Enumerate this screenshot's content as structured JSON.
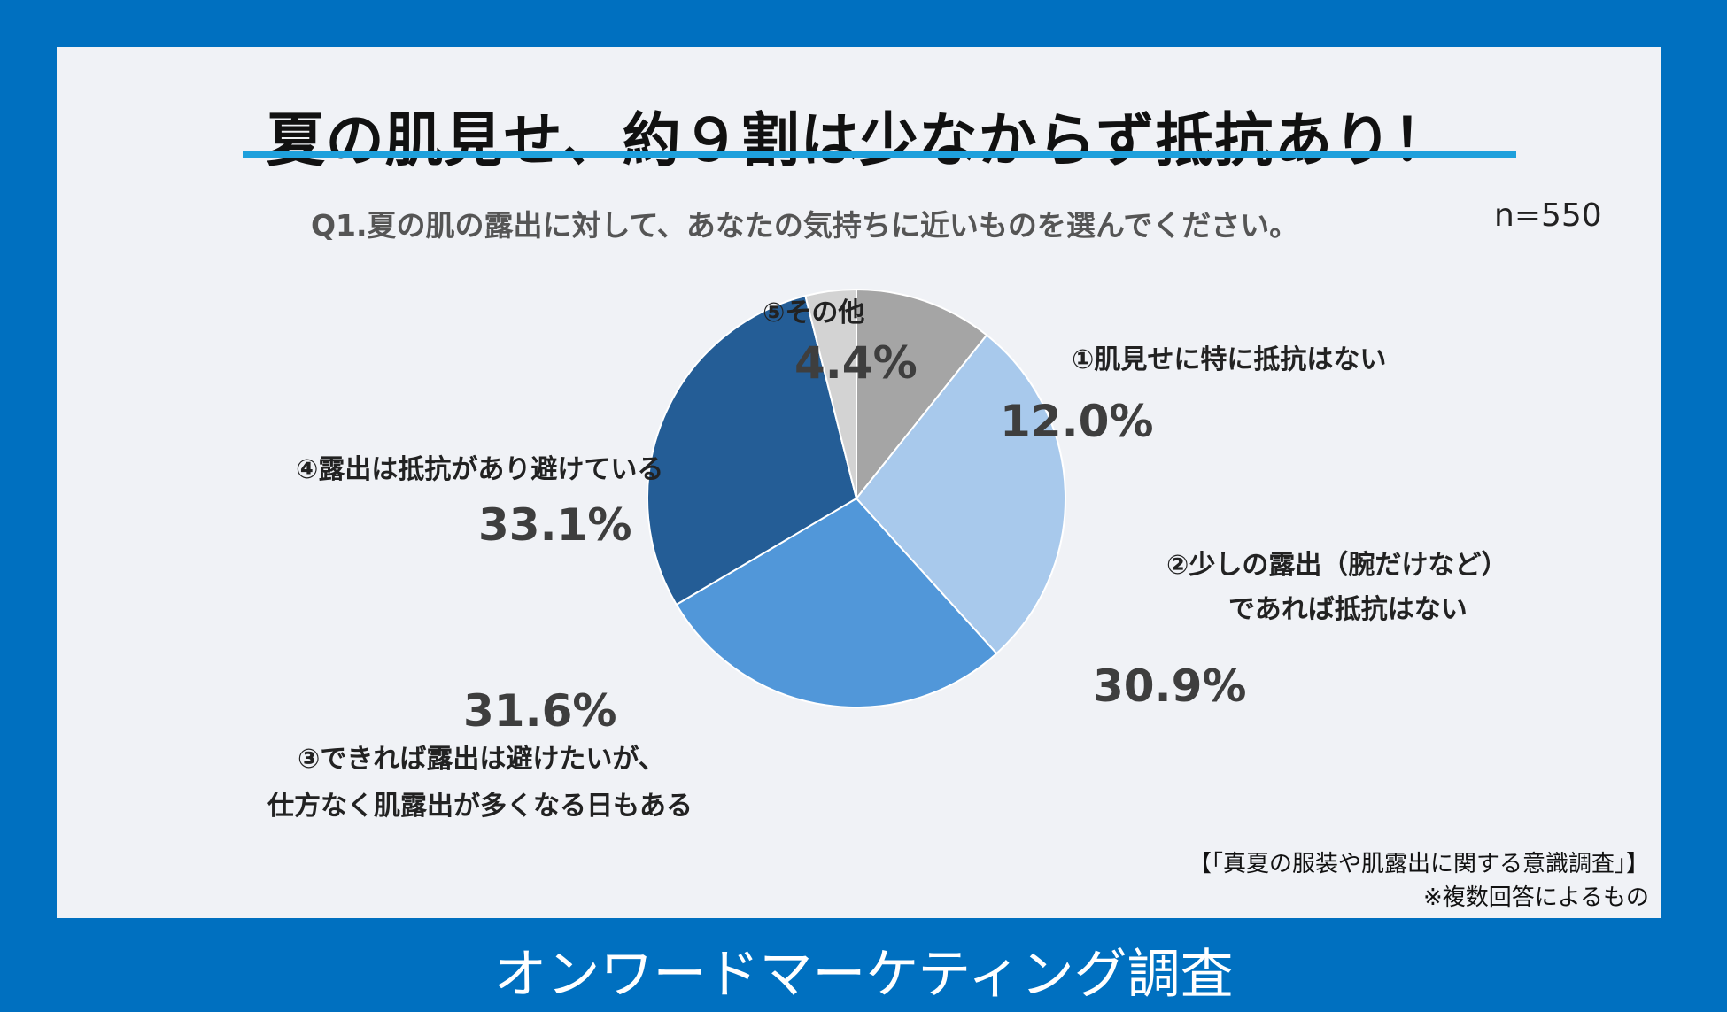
{
  "title": "夏の肌見せ、約９割は少なからず抵抗あり！",
  "question": "Q1.夏の肌の露出に対して、あなたの気持ちに近いものを選んでください。",
  "sample_size": "n=550",
  "chart_data": {
    "type": "pie",
    "start": "12 o'clock",
    "direction": "clockwise",
    "slices": [
      {
        "label": "①肌見せに特に抵抗はない",
        "value": 12.0,
        "value_label": "12.0%",
        "color": "#a5a5a5"
      },
      {
        "label_lines": [
          "②少しの露出（腕だけなど）",
          "であれば抵抗はない"
        ],
        "value": 30.9,
        "value_label": "30.9%",
        "color": "#a8c9ec"
      },
      {
        "label_lines": [
          "③できれば露出は避けたいが、",
          "仕方なく肌露出が多くなる日もある"
        ],
        "value": 31.6,
        "value_label": "31.6%",
        "color": "#5197d9"
      },
      {
        "label": "④露出は抵抗があり避けている",
        "value": 33.1,
        "value_label": "33.1%",
        "color": "#245d96"
      },
      {
        "label": "⑤その他",
        "value": 4.4,
        "value_label": "4.4%",
        "color": "#d3d3d3"
      }
    ]
  },
  "source_note": "【「真夏の服装や肌露出に関する意識調査」】",
  "multi_answer_note": "※複数回答によるもの",
  "footer": "オンワードマーケティング調査"
}
